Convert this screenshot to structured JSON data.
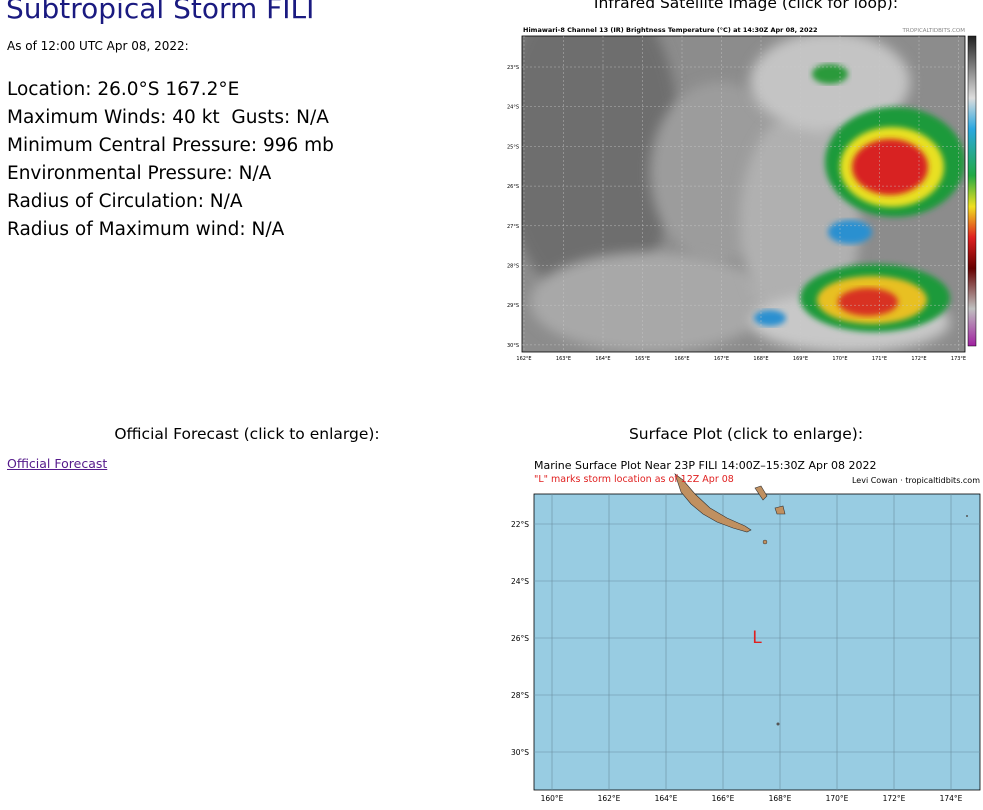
{
  "header": {
    "title": "Subtropical Storm FILI",
    "as_of": "As of 12:00 UTC Apr 08, 2022:"
  },
  "details": [
    "Location: 26.0°S 167.2°E",
    "Maximum Winds: 40 kt  Gusts: N/A",
    "Minimum Central Pressure: 996 mb",
    "Environmental Pressure: N/A",
    "Radius of Circulation: N/A",
    "Radius of Maximum wind: N/A"
  ],
  "satellite": {
    "caption": "Infrared Satellite Image (click for loop):",
    "image_title": "Himawari-8 Channel 13 (IR) Brightness Temperature (°C) at 14:30Z Apr 08, 2022",
    "credit": "TROPICALTIDBITS.COM",
    "lat_labels": [
      "23°S",
      "24°S",
      "25°S",
      "26°S",
      "27°S",
      "28°S",
      "29°S",
      "30°S"
    ],
    "lon_labels": [
      "162°E",
      "163°E",
      "164°E",
      "165°E",
      "166°E",
      "167°E",
      "168°E",
      "169°E",
      "170°E",
      "171°E",
      "172°E",
      "173°E"
    ]
  },
  "forecast": {
    "caption": "Official Forecast (click to enlarge):",
    "link": "Official Forecast"
  },
  "surface_plot": {
    "caption": "Surface Plot (click to enlarge):",
    "title": "Marine Surface Plot Near 23P FILI 14:00Z–15:30Z Apr 08 2022",
    "subtitle": "\"L\" marks storm location as of 12Z Apr 08",
    "credit": "Levi Cowan · tropicaltidbits.com",
    "storm_marker": "L",
    "lat_labels": [
      "22°S",
      "24°S",
      "26°S",
      "28°S",
      "30°S"
    ],
    "lon_labels": [
      "160°E",
      "162°E",
      "164°E",
      "166°E",
      "168°E",
      "170°E",
      "172°E",
      "174°E"
    ]
  }
}
